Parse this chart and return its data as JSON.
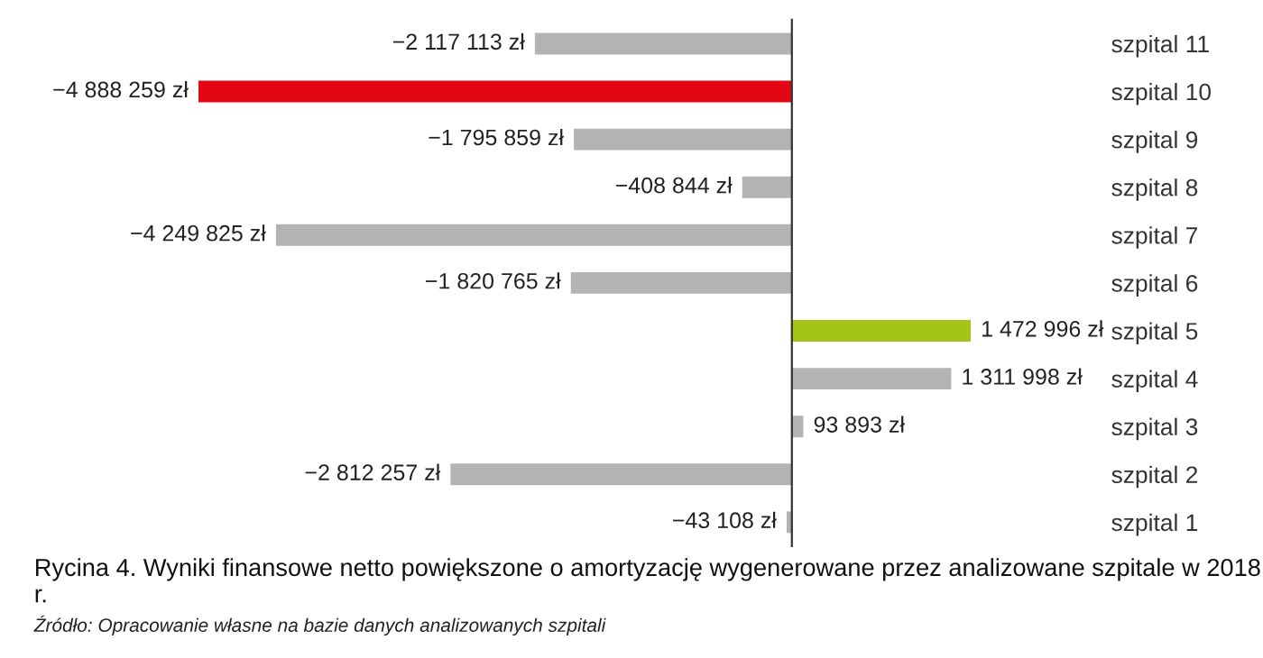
{
  "chart_data": {
    "type": "bar",
    "orientation": "horizontal",
    "title": "Rycina 4. Wyniki finansowe netto powiększone o amortyzację wygenerowane przez analizowane szpitale w 2018 r.",
    "annotations": [
      "Źródło: Opracowanie własne na bazie danych analizowanych szpitali"
    ],
    "categories": [
      "szpital 11",
      "szpital 10",
      "szpital 9",
      "szpital 8",
      "szpital 7",
      "szpital 6",
      "szpital 5",
      "szpital 4",
      "szpital 3",
      "szpital 2",
      "szpital 1"
    ],
    "values": [
      -2117113,
      -4888259,
      -1795859,
      -408844,
      -4249825,
      -1820765,
      1472996,
      1311998,
      93893,
      -2812257,
      -43108
    ],
    "colors": [
      "#b3b3b3",
      "#e30613",
      "#b3b3b3",
      "#b3b3b3",
      "#b3b3b3",
      "#b3b3b3",
      "#a2c516",
      "#b3b3b3",
      "#b3b3b3",
      "#b3b3b3",
      "#b3b3b3"
    ],
    "value_labels": [
      "−2 117 113 zł",
      "−4 888 259 zł",
      "−1 795 859 zł",
      "−408 844 zł",
      "−4 249 825 zł",
      "−1 820 765 zł",
      "1 472 996 zł",
      "1 311 998 zł",
      "93 893 zł",
      "−2 812 257 zł",
      "−43 108 zł"
    ]
  }
}
